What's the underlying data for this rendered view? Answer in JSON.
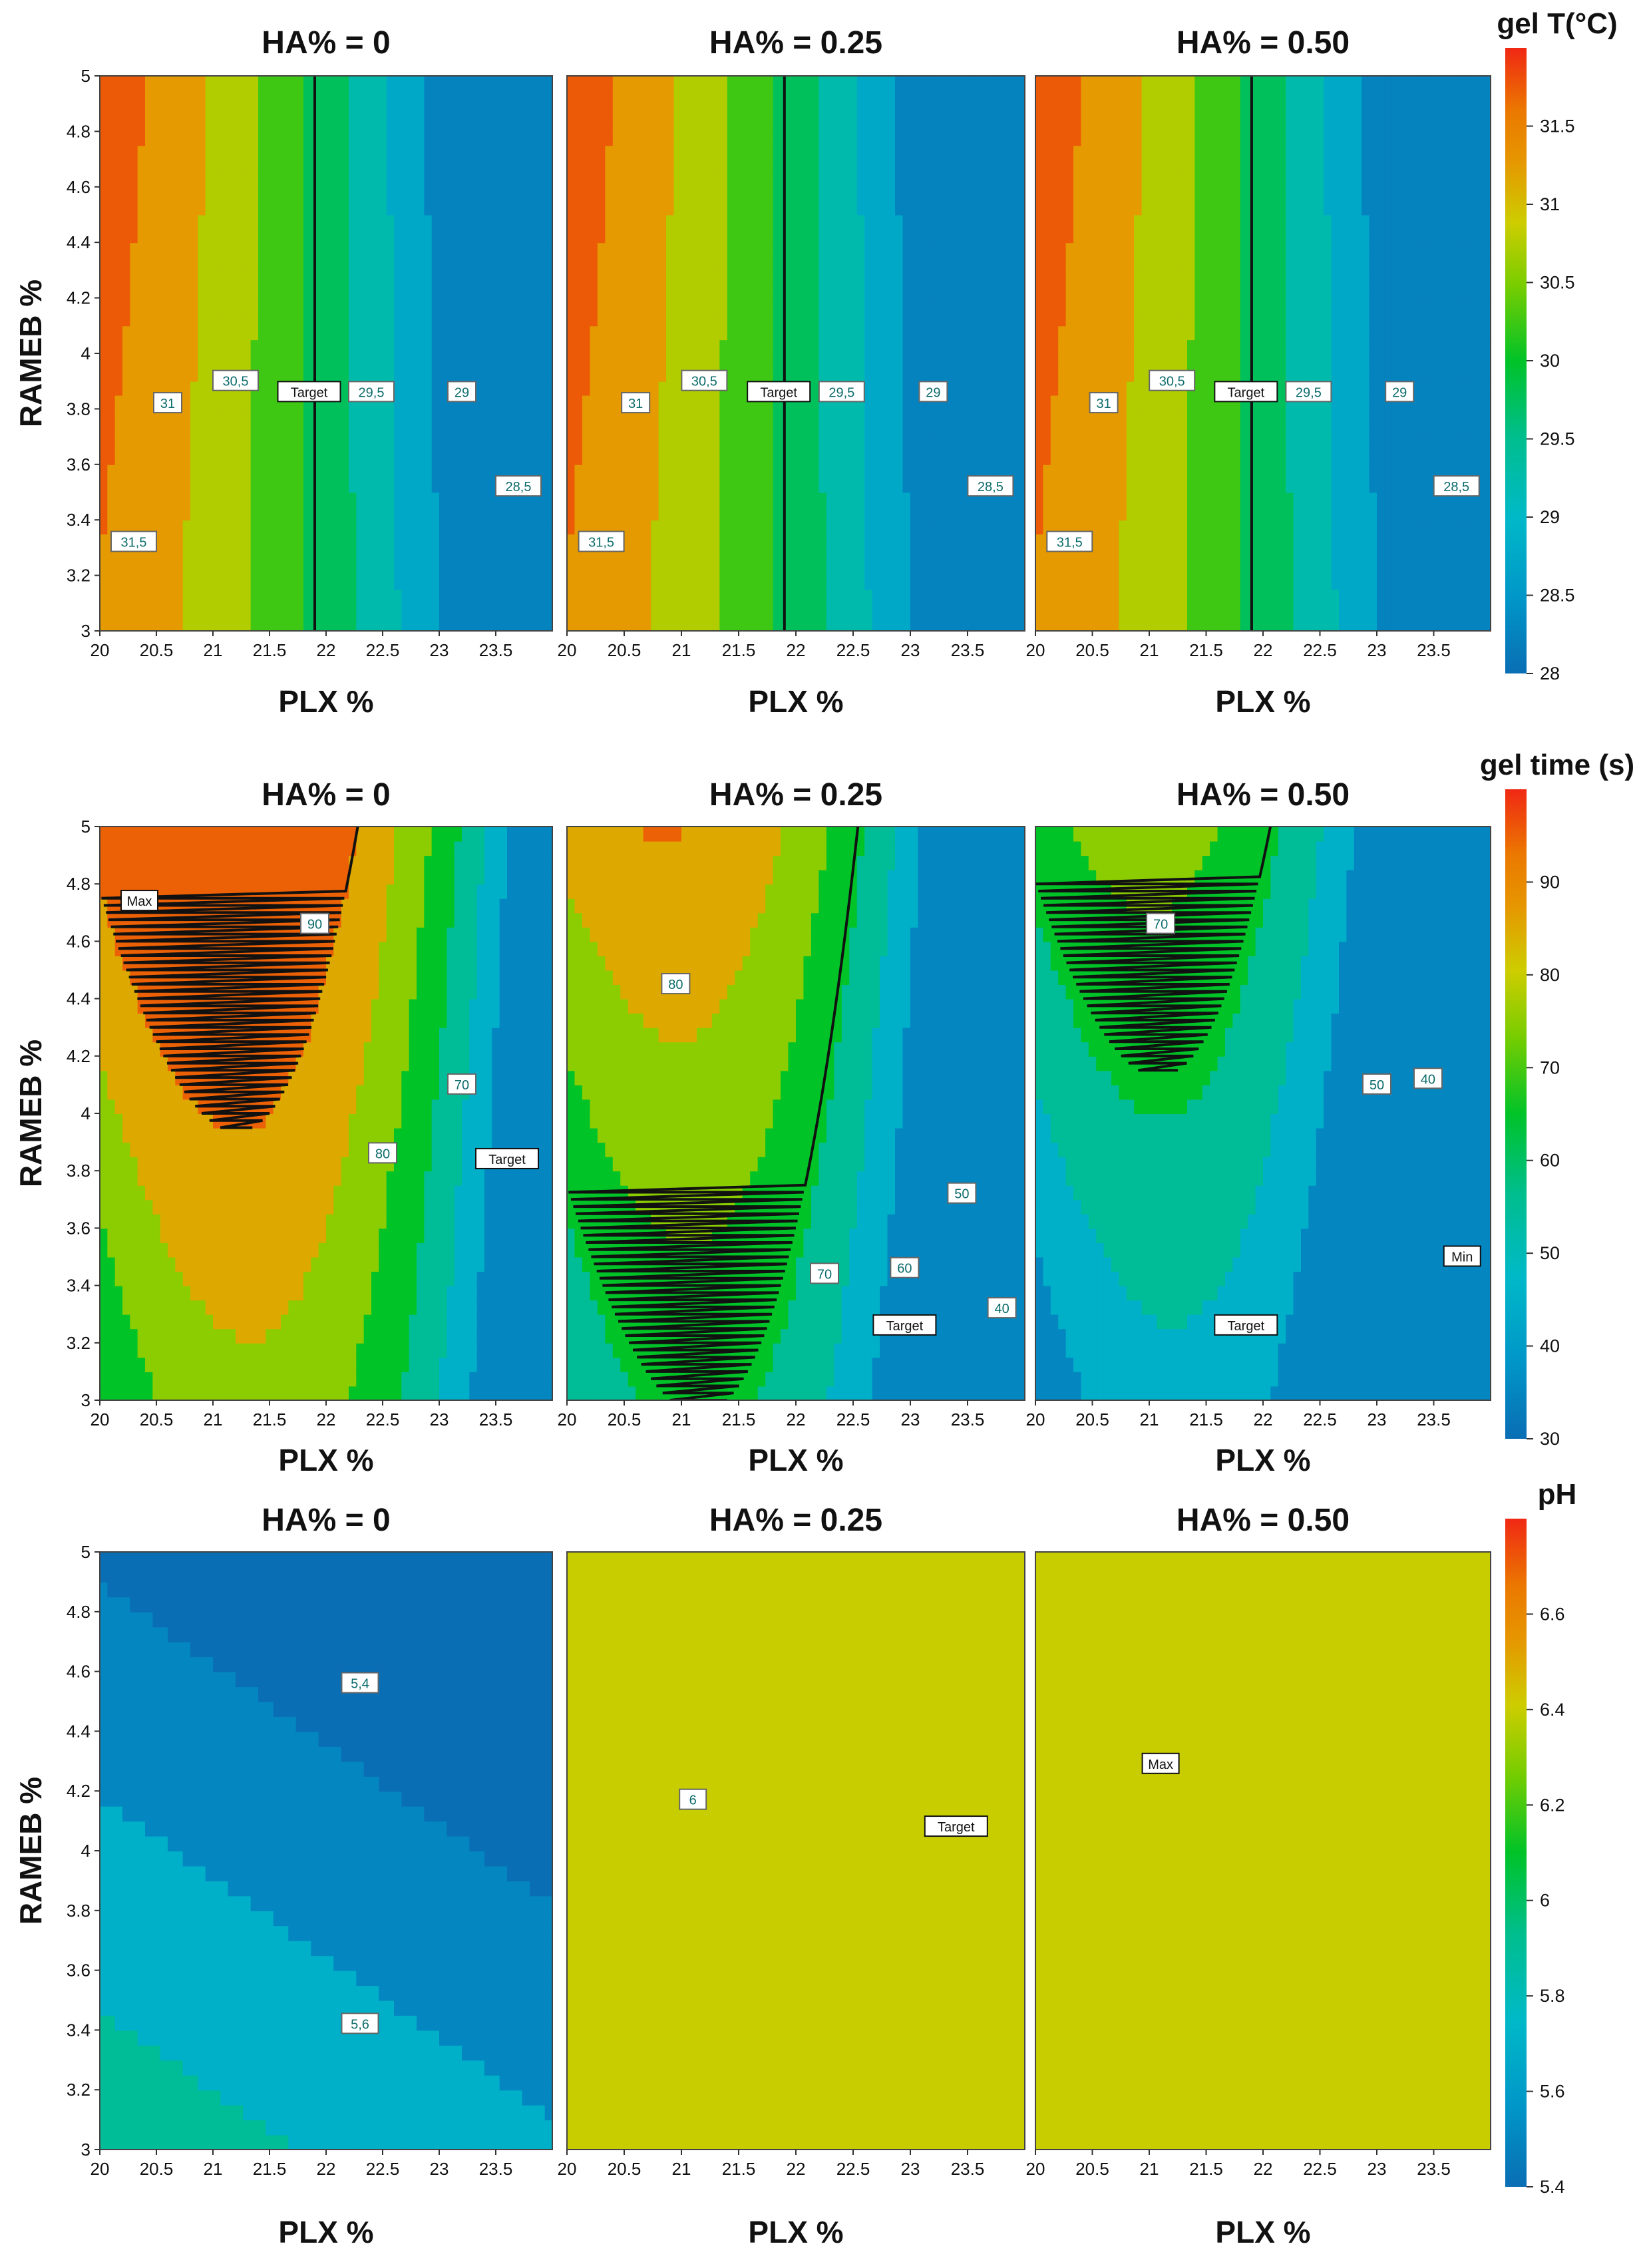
{
  "figure": {
    "rows": [
      {
        "id": "gelT",
        "colorbar": {
          "title": "gel T(°C)",
          "min": 28,
          "max": 32,
          "ticks": [
            "31.5",
            "31",
            "30.5",
            "30",
            "29.5",
            "29",
            "28.5",
            "28"
          ]
        },
        "x_label": "PLX %",
        "y_label": "RAMEB %",
        "panels": [
          {
            "title": "HA% = 0",
            "labels": [
              "31,5",
              "31",
              "30,5",
              "Target",
              "29,5",
              "29",
              "28,5"
            ]
          },
          {
            "title": "HA% = 0.25",
            "labels": [
              "31,5",
              "31",
              "30,5",
              "Target",
              "29,5",
              "29",
              "28,5"
            ]
          },
          {
            "title": "HA% = 0.50",
            "labels": [
              "31,5",
              "31",
              "30,5",
              "Target",
              "29,5",
              "29",
              "28,5"
            ]
          }
        ]
      },
      {
        "id": "gelTime",
        "colorbar": {
          "title": "gel time (s)",
          "min": 30,
          "max": 100,
          "ticks": [
            "90",
            "80",
            "70",
            "60",
            "50",
            "40",
            "30"
          ]
        },
        "x_label": "PLX %",
        "y_label": "RAMEB %",
        "panels": [
          {
            "title": "HA% = 0",
            "labels": [
              "Max",
              "90",
              "70",
              "80",
              "Target"
            ]
          },
          {
            "title": "HA% = 0.25",
            "labels": [
              "80",
              "50",
              "70",
              "60",
              "Target",
              "40"
            ]
          },
          {
            "title": "HA% = 0.50",
            "labels": [
              "70",
              "50",
              "40",
              "Min",
              "Target"
            ]
          }
        ]
      },
      {
        "id": "pH",
        "colorbar": {
          "title": "pH",
          "min": 5.4,
          "max": 6.8,
          "ticks": [
            "6.6",
            "6.4",
            "6.2",
            "6",
            "5.8",
            "5.6",
            "5.4"
          ]
        },
        "x_label": "PLX %",
        "y_label": "RAMEB %",
        "panels": [
          {
            "title": "HA% = 0",
            "labels": [
              "5,4",
              "5,6"
            ]
          },
          {
            "title": "HA% = 0.25",
            "labels": [
              "6",
              "Target"
            ]
          },
          {
            "title": "HA% = 0.50",
            "labels": [
              "Max"
            ]
          }
        ]
      }
    ]
  },
  "chart_data": [
    {
      "type": "contour",
      "title": "gel T(°C) — contour plots",
      "response": "gel T (°C)",
      "xlabel": "PLX %",
      "ylabel": "RAMEB %",
      "xlim": [
        20,
        24
      ],
      "ylim": [
        3,
        5
      ],
      "x_ticks": [
        "20",
        "20.5",
        "21",
        "21.5",
        "22",
        "22.5",
        "23",
        "23.5"
      ],
      "y_ticks": [
        "3",
        "3.2",
        "3.4",
        "3.6",
        "3.8",
        "4",
        "4.2",
        "4.4",
        "4.6",
        "4.8",
        "5"
      ],
      "contour_levels": [
        28.5,
        29,
        29.5,
        30,
        30.5,
        31,
        31.5
      ],
      "target": 29.9,
      "panels": [
        "HA% = 0",
        "HA% = 0.25",
        "HA% = 0.50"
      ]
    },
    {
      "type": "contour",
      "title": "gel time (s) — contour plots",
      "response": "gel time (s)",
      "xlabel": "PLX %",
      "ylabel": "RAMEB %",
      "xlim": [
        20,
        24
      ],
      "ylim": [
        3,
        5
      ],
      "x_ticks": [
        "20",
        "20.5",
        "21",
        "21.5",
        "22",
        "22.5",
        "23",
        "23.5"
      ],
      "y_ticks": [
        "3",
        "3.2",
        "3.4",
        "3.6",
        "3.8",
        "4",
        "4.2",
        "4.4",
        "4.6",
        "4.8",
        "5"
      ],
      "contour_levels": [
        40,
        50,
        60,
        70,
        80,
        90
      ],
      "target": 62,
      "panels": [
        "HA% = 0",
        "HA% = 0.25",
        "HA% = 0.50"
      ]
    },
    {
      "type": "contour",
      "title": "pH — contour plots",
      "response": "pH",
      "xlabel": "PLX %",
      "ylabel": "RAMEB %",
      "xlim": [
        20,
        24
      ],
      "ylim": [
        3,
        5
      ],
      "x_ticks": [
        "20",
        "20.5",
        "21",
        "21.5",
        "22",
        "22.5",
        "23",
        "23.5"
      ],
      "y_ticks": [
        "3",
        "3.2",
        "3.4",
        "3.6",
        "3.8",
        "4",
        "4.2",
        "4.4",
        "4.6",
        "4.8",
        "5"
      ],
      "contour_levels": [
        5.4,
        5.6,
        6
      ],
      "panels": [
        "HA% = 0",
        "HA% = 0.25",
        "HA% = 0.50"
      ]
    }
  ]
}
